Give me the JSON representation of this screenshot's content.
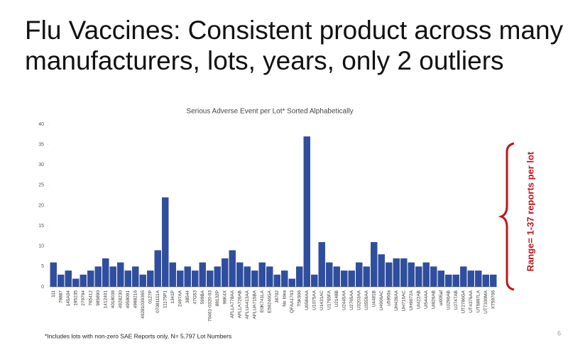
{
  "slide": {
    "title_lines": [
      "Flu Vaccines: Consistent product across many",
      "manufacturers, lots, years, only 2 outliers"
    ],
    "page_number": "6"
  },
  "chart_data": {
    "type": "bar",
    "title": "Serious Adverse Event per Lot* Sorted Alphabetically",
    "categories": [
      "111",
      "79887",
      "145A04",
      "195235",
      "279794",
      "765412",
      "985890",
      "1412401",
      "4018038",
      "4928230",
      "4958091",
      "4988216",
      "49281039365",
      "0127P",
      "07081111A",
      "11175P1",
      "1341P",
      "2497AA",
      "38544",
      "47G53",
      "599BA",
      "70461-0320-03",
      "88132P",
      "98K4X",
      "AFLLA778AA",
      "AFLLA726AB",
      "AFLUA413AA",
      "AFLUA715BA",
      "E0K741LA",
      "E59246GA",
      "J8702",
      "No Idea",
      "QFAA1703",
      "T5K906",
      "U0584AA",
      "U1075AA",
      "U1431AC",
      "U1765FA",
      "U2148B",
      "U2445AA",
      "U2765AA",
      "U3203AA",
      "U3559AA",
      "U4481B",
      "U4906AC",
      "u5950a",
      "UH439AA",
      "UH716AC",
      "UH9072A",
      "UI422AB",
      "UI544AA",
      "UI826AB",
      "ui005af",
      "UJ290AB",
      "UJ747AB",
      "UT2786GA",
      "UT4376AA",
      "UT5897LA",
      "UT7330MA",
      "XT59706"
    ],
    "values": [
      6,
      3,
      4,
      2,
      3,
      4,
      5,
      7,
      5,
      6,
      4,
      5,
      3,
      4,
      9,
      22,
      6,
      4,
      5,
      4,
      6,
      4,
      5,
      7,
      9,
      6,
      5,
      4,
      6,
      5,
      3,
      4,
      2,
      5,
      37,
      3,
      11,
      6,
      5,
      4,
      4,
      6,
      5,
      11,
      8,
      6,
      7,
      7,
      6,
      5,
      6,
      5,
      4,
      3,
      3,
      5,
      4,
      4,
      3,
      3
    ],
    "color": "#2f4e9e",
    "ylim": [
      0,
      40
    ],
    "yticks": [
      0,
      5,
      10,
      15,
      20,
      25,
      30,
      35,
      40
    ],
    "annotation": "Range= 1-37 reports per lot",
    "footnote": "*Includes lots with non-zero SAE Reports only, N= 5,797 Lot Numbers"
  }
}
